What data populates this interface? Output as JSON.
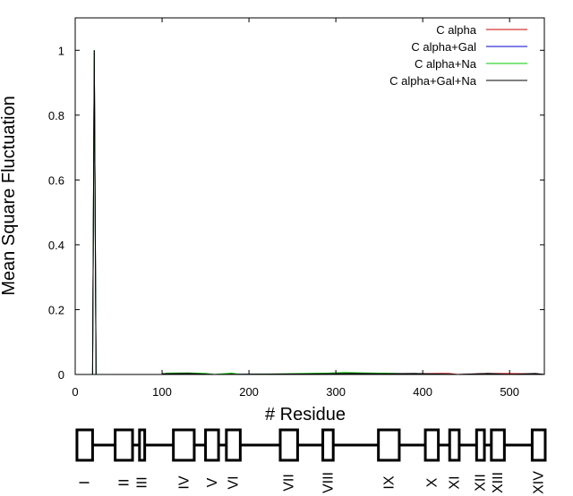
{
  "chart_data": {
    "type": "line",
    "title": "",
    "xlabel": "# Residue",
    "ylabel": "Mean Square Fluctuation",
    "xlim": [
      0,
      540
    ],
    "ylim": [
      0,
      1.1
    ],
    "x_ticks": [
      0,
      100,
      200,
      300,
      400,
      500
    ],
    "y_ticks": [
      0,
      0.2,
      0.4,
      0.6,
      0.8,
      1
    ],
    "x_tick_labels": [
      "0",
      "100",
      "200",
      "300",
      "400",
      "500"
    ],
    "y_tick_labels": [
      "0",
      "0.2",
      "0.4",
      "0.6",
      "0.8",
      "1"
    ],
    "legend_position": "top-right",
    "grid": false,
    "series": [
      {
        "name": "C alpha",
        "color": "#cc0000",
        "points": [
          [
            0,
            0
          ],
          [
            20,
            0
          ],
          [
            22,
            1
          ],
          [
            24,
            0
          ],
          [
            100,
            0
          ],
          [
            101,
            0.002
          ],
          [
            130,
            0.003
          ],
          [
            160,
            0
          ],
          [
            180,
            0.002
          ],
          [
            190,
            0
          ],
          [
            290,
            0.002
          ],
          [
            320,
            0.004
          ],
          [
            345,
            0.003
          ],
          [
            390,
            0.002
          ],
          [
            420,
            0.003
          ],
          [
            430,
            0.003
          ],
          [
            440,
            0
          ],
          [
            475,
            0.003
          ],
          [
            530,
            0.002
          ],
          [
            540,
            0
          ]
        ]
      },
      {
        "name": "C alpha+Gal",
        "color": "#0000cc",
        "points": [
          [
            0,
            0
          ],
          [
            20,
            0
          ],
          [
            22,
            1
          ],
          [
            24,
            0
          ],
          [
            100,
            0
          ],
          [
            101,
            0.002
          ],
          [
            130,
            0.003
          ],
          [
            160,
            0
          ],
          [
            290,
            0.002
          ],
          [
            320,
            0.003
          ],
          [
            390,
            0.002
          ],
          [
            440,
            0
          ],
          [
            540,
            0
          ]
        ]
      },
      {
        "name": "C alpha+Na",
        "color": "#00cc00",
        "points": [
          [
            0,
            0
          ],
          [
            20,
            0
          ],
          [
            22,
            1
          ],
          [
            24,
            0
          ],
          [
            100,
            0
          ],
          [
            105,
            0.004
          ],
          [
            130,
            0.005
          ],
          [
            150,
            0.003
          ],
          [
            160,
            0
          ],
          [
            180,
            0.004
          ],
          [
            190,
            0
          ],
          [
            290,
            0.004
          ],
          [
            310,
            0.006
          ],
          [
            330,
            0.005
          ],
          [
            350,
            0.004
          ],
          [
            390,
            0.002
          ],
          [
            440,
            0
          ],
          [
            540,
            0
          ]
        ]
      },
      {
        "name": "C alpha+Gal+Na",
        "color": "#000000",
        "points": [
          [
            0,
            0
          ],
          [
            20,
            0
          ],
          [
            22,
            1
          ],
          [
            24,
            0
          ],
          [
            100,
            0
          ],
          [
            101,
            0.002
          ],
          [
            130,
            0.003
          ],
          [
            160,
            0
          ],
          [
            290,
            0.002
          ],
          [
            320,
            0.003
          ],
          [
            350,
            0.002
          ],
          [
            390,
            0.003
          ],
          [
            440,
            0
          ],
          [
            475,
            0.003
          ],
          [
            500,
            0
          ],
          [
            530,
            0.003
          ],
          [
            540,
            0
          ]
        ]
      }
    ],
    "domains": {
      "labels": [
        "I",
        "II",
        "III",
        "IV",
        "V",
        "VI",
        "VII",
        "VIII",
        "IX",
        "X",
        "XI",
        "XII",
        "XIII",
        "XIV"
      ],
      "ranges": [
        [
          2,
          20
        ],
        [
          46,
          66
        ],
        [
          74,
          80
        ],
        [
          113,
          137
        ],
        [
          150,
          165
        ],
        [
          174,
          190
        ],
        [
          236,
          256
        ],
        [
          285,
          297
        ],
        [
          349,
          373
        ],
        [
          403,
          418
        ],
        [
          431,
          442
        ],
        [
          462,
          471
        ],
        [
          479,
          494
        ],
        [
          526,
          541
        ]
      ]
    }
  }
}
